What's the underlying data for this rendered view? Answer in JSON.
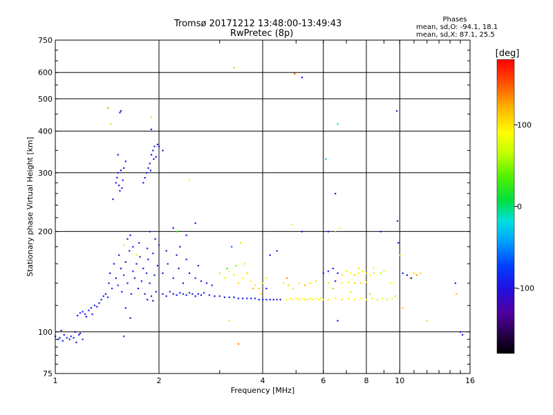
{
  "header": {
    "title": "Tromsø 20171212 13:48:00-13:49:43",
    "subtitle": "RwPretec (8p)",
    "stats_title": "Phases",
    "stats_o": "mean, sd,O: -94.1, 18.1",
    "stats_x": "mean, sd,X:  87.1, 25.5"
  },
  "colorbar": {
    "unit": "[deg]",
    "ticks": [
      100,
      0,
      -100
    ],
    "range": [
      -180,
      180
    ]
  },
  "chart_data": {
    "type": "scatter",
    "title": "Tromsø 20171212 13:48:00-13:49:43",
    "subtitle": "RwPretec (8p)",
    "xlabel": "Frequency [MHz]",
    "ylabel": "Stationary phase Virtual Height [km]",
    "x_scale": "log",
    "y_scale": "log",
    "xlim": [
      1,
      16
    ],
    "ylim": [
      75,
      750
    ],
    "x_ticks": [
      1,
      2,
      4,
      6,
      8,
      10,
      16
    ],
    "x_grid": [
      2,
      4,
      6,
      8,
      10
    ],
    "y_ticks": [
      75,
      100,
      200,
      300,
      400,
      500,
      600,
      750
    ],
    "grid": true,
    "color_variable": "phase [deg]",
    "color_range": [
      -180,
      180
    ],
    "points": [
      [
        1.0,
        97,
        -95
      ],
      [
        1.02,
        95,
        -100
      ],
      [
        1.03,
        96,
        -98
      ],
      [
        1.05,
        94,
        -92
      ],
      [
        1.06,
        98,
        -105
      ],
      [
        1.08,
        96,
        -90
      ],
      [
        1.1,
        95,
        -100
      ],
      [
        1.11,
        97,
        -85
      ],
      [
        1.13,
        96,
        -95
      ],
      [
        1.14,
        100,
        -110
      ],
      [
        1.15,
        93,
        -100
      ],
      [
        1.17,
        98,
        -90
      ],
      [
        1.18,
        99,
        -100
      ],
      [
        1.2,
        95,
        -80
      ],
      [
        1.04,
        101,
        -102
      ],
      [
        1.16,
        112,
        -100
      ],
      [
        1.18,
        114,
        -95
      ],
      [
        1.2,
        115,
        -90
      ],
      [
        1.22,
        113,
        -100
      ],
      [
        1.25,
        116,
        -95
      ],
      [
        1.27,
        118,
        -100
      ],
      [
        1.3,
        120,
        -92
      ],
      [
        1.32,
        119,
        -98
      ],
      [
        1.23,
        111,
        -100
      ],
      [
        1.28,
        113,
        -108
      ],
      [
        1.34,
        122,
        -100
      ],
      [
        1.36,
        125,
        -90
      ],
      [
        1.38,
        128,
        -95
      ],
      [
        1.4,
        130,
        -100
      ],
      [
        1.42,
        127,
        -88
      ],
      [
        1.43,
        140,
        -95
      ],
      [
        1.44,
        150,
        -100
      ],
      [
        1.46,
        135,
        -85
      ],
      [
        1.48,
        160,
        -95
      ],
      [
        1.5,
        145,
        -100
      ],
      [
        1.52,
        138,
        -90
      ],
      [
        1.53,
        170,
        -95
      ],
      [
        1.55,
        155,
        -100
      ],
      [
        1.56,
        132,
        -92
      ],
      [
        1.58,
        148,
        -80
      ],
      [
        1.6,
        162,
        -100
      ],
      [
        1.62,
        140,
        -95
      ],
      [
        1.64,
        175,
        -90
      ],
      [
        1.66,
        130,
        -100
      ],
      [
        1.68,
        152,
        -85
      ],
      [
        1.7,
        145,
        -95
      ],
      [
        1.72,
        160,
        -110
      ],
      [
        1.74,
        135,
        -100
      ],
      [
        1.76,
        168,
        -95
      ],
      [
        1.78,
        142,
        -90
      ],
      [
        1.8,
        155,
        -100
      ],
      [
        1.82,
        130,
        -95
      ],
      [
        1.84,
        150,
        -88
      ],
      [
        1.86,
        165,
        -100
      ],
      [
        1.88,
        140,
        -95
      ],
      [
        1.9,
        128,
        -92
      ],
      [
        1.92,
        172,
        -100
      ],
      [
        1.94,
        148,
        -95
      ],
      [
        1.96,
        132,
        -90
      ],
      [
        1.98,
        158,
        -100
      ],
      [
        1.62,
        190,
        -100
      ],
      [
        1.65,
        195,
        -95
      ],
      [
        1.68,
        180,
        -110
      ],
      [
        1.75,
        185,
        -100
      ],
      [
        1.85,
        178,
        -95
      ],
      [
        1.88,
        200,
        -90
      ],
      [
        1.95,
        190,
        -100
      ],
      [
        2.0,
        182,
        -95
      ],
      [
        1.58,
        182,
        60
      ],
      [
        1.72,
        170,
        70
      ],
      [
        1.47,
        250,
        -100
      ],
      [
        1.5,
        280,
        -95
      ],
      [
        1.51,
        290,
        -100
      ],
      [
        1.52,
        300,
        -90
      ],
      [
        1.53,
        275,
        -100
      ],
      [
        1.54,
        265,
        -95
      ],
      [
        1.55,
        305,
        -100
      ],
      [
        1.57,
        285,
        -90
      ],
      [
        1.58,
        310,
        -100
      ],
      [
        1.56,
        270,
        -95
      ],
      [
        1.52,
        340,
        -100
      ],
      [
        1.54,
        455,
        -95
      ],
      [
        1.55,
        460,
        -100
      ],
      [
        1.6,
        325,
        -90
      ],
      [
        1.8,
        280,
        -100
      ],
      [
        1.82,
        290,
        -95
      ],
      [
        1.84,
        300,
        -90
      ],
      [
        1.86,
        310,
        -100
      ],
      [
        1.88,
        320,
        -95
      ],
      [
        1.9,
        340,
        -100
      ],
      [
        1.92,
        350,
        -95
      ],
      [
        1.94,
        360,
        -90
      ],
      [
        1.96,
        335,
        -100
      ],
      [
        1.98,
        365,
        -95
      ],
      [
        2.0,
        360,
        -100
      ],
      [
        1.89,
        305,
        -92
      ],
      [
        1.93,
        330,
        -100
      ],
      [
        1.9,
        405,
        -95
      ],
      [
        2.05,
        350,
        -100
      ],
      [
        1.42,
        470,
        40
      ],
      [
        1.45,
        420,
        60
      ],
      [
        1.9,
        440,
        70
      ],
      [
        1.65,
        110,
        -100
      ],
      [
        1.6,
        118,
        -95
      ],
      [
        1.58,
        97,
        -80
      ],
      [
        1.85,
        125,
        -100
      ],
      [
        1.92,
        124,
        -95
      ],
      [
        2.05,
        130,
        -100
      ],
      [
        2.1,
        128,
        -95
      ],
      [
        2.15,
        132,
        -90
      ],
      [
        2.2,
        130,
        -100
      ],
      [
        2.25,
        129,
        -95
      ],
      [
        2.3,
        131,
        -100
      ],
      [
        2.35,
        130,
        -92
      ],
      [
        2.4,
        129,
        -100
      ],
      [
        2.45,
        131,
        -95
      ],
      [
        2.5,
        130,
        -100
      ],
      [
        2.55,
        128,
        -90
      ],
      [
        2.6,
        130,
        -100
      ],
      [
        2.65,
        129,
        -95
      ],
      [
        2.7,
        131,
        -100
      ],
      [
        2.8,
        129,
        -95
      ],
      [
        2.9,
        128,
        -100
      ],
      [
        3.0,
        128,
        -92
      ],
      [
        3.1,
        127,
        -100
      ],
      [
        3.2,
        127,
        -95
      ],
      [
        3.3,
        127,
        -100
      ],
      [
        3.4,
        126,
        -95
      ],
      [
        3.5,
        126,
        -100
      ],
      [
        3.6,
        126,
        -90
      ],
      [
        3.7,
        126,
        -100
      ],
      [
        3.8,
        126,
        -95
      ],
      [
        3.9,
        125,
        -100
      ],
      [
        4.0,
        125,
        -95
      ],
      [
        4.1,
        125,
        -100
      ],
      [
        4.2,
        125,
        -92
      ],
      [
        4.3,
        125,
        -100
      ],
      [
        4.4,
        125,
        -95
      ],
      [
        4.5,
        125,
        -100
      ],
      [
        2.05,
        150,
        -100
      ],
      [
        2.12,
        160,
        -95
      ],
      [
        2.2,
        145,
        -90
      ],
      [
        2.28,
        155,
        -100
      ],
      [
        2.35,
        140,
        -95
      ],
      [
        2.45,
        150,
        -100
      ],
      [
        2.55,
        145,
        -85
      ],
      [
        2.65,
        142,
        -95
      ],
      [
        2.75,
        140,
        -100
      ],
      [
        2.85,
        138,
        -95
      ],
      [
        2.1,
        175,
        -100
      ],
      [
        2.25,
        170,
        -95
      ],
      [
        2.4,
        165,
        -100
      ],
      [
        2.6,
        158,
        -90
      ],
      [
        2.3,
        180,
        -95
      ],
      [
        2.2,
        205,
        -100
      ],
      [
        2.4,
        195,
        -95
      ],
      [
        2.55,
        212,
        -100
      ],
      [
        2.45,
        285,
        90
      ],
      [
        2.25,
        200,
        20
      ],
      [
        3.0,
        150,
        60
      ],
      [
        3.1,
        145,
        80
      ],
      [
        3.2,
        152,
        90
      ],
      [
        3.3,
        148,
        100
      ],
      [
        3.4,
        140,
        110
      ],
      [
        3.5,
        145,
        95
      ],
      [
        3.6,
        150,
        105
      ],
      [
        3.7,
        142,
        90
      ],
      [
        3.8,
        138,
        100
      ],
      [
        3.9,
        135,
        110
      ],
      [
        4.0,
        140,
        95
      ],
      [
        4.1,
        145,
        100
      ],
      [
        3.15,
        155,
        30
      ],
      [
        3.35,
        158,
        50
      ],
      [
        3.55,
        160,
        70
      ],
      [
        3.75,
        135,
        120
      ],
      [
        3.95,
        130,
        100
      ],
      [
        3.25,
        180,
        -60
      ],
      [
        3.45,
        185,
        60
      ],
      [
        3.3,
        620,
        120
      ],
      [
        3.2,
        108,
        100
      ],
      [
        3.4,
        92,
        140
      ],
      [
        4.1,
        135,
        -100
      ],
      [
        4.2,
        170,
        -100
      ],
      [
        4.4,
        175,
        -90
      ],
      [
        4.7,
        125,
        90
      ],
      [
        4.8,
        126,
        100
      ],
      [
        4.9,
        125,
        85
      ],
      [
        5.0,
        126,
        95
      ],
      [
        5.1,
        125,
        100
      ],
      [
        5.2,
        126,
        90
      ],
      [
        5.3,
        125,
        80
      ],
      [
        5.4,
        125,
        100
      ],
      [
        5.5,
        126,
        95
      ],
      [
        5.6,
        125,
        90
      ],
      [
        5.7,
        126,
        85
      ],
      [
        5.8,
        125,
        100
      ],
      [
        5.9,
        126,
        95
      ],
      [
        6.0,
        125,
        90
      ],
      [
        4.6,
        140,
        100
      ],
      [
        4.75,
        138,
        110
      ],
      [
        4.9,
        135,
        95
      ],
      [
        5.1,
        140,
        100
      ],
      [
        5.3,
        138,
        120
      ],
      [
        5.5,
        140,
        100
      ],
      [
        5.7,
        142,
        110
      ],
      [
        4.7,
        145,
        130
      ],
      [
        4.85,
        210,
        100
      ],
      [
        5.2,
        200,
        -100
      ],
      [
        4.95,
        595,
        150
      ],
      [
        5.2,
        580,
        -100
      ],
      [
        6.0,
        150,
        -100
      ],
      [
        6.2,
        152,
        -95
      ],
      [
        6.4,
        155,
        -90
      ],
      [
        6.6,
        150,
        -100
      ],
      [
        6.8,
        148,
        100
      ],
      [
        7.0,
        152,
        100
      ],
      [
        7.2,
        150,
        95
      ],
      [
        7.4,
        148,
        110
      ],
      [
        7.6,
        150,
        100
      ],
      [
        7.8,
        152,
        95
      ],
      [
        8.0,
        150,
        100
      ],
      [
        8.2,
        148,
        90
      ],
      [
        8.4,
        150,
        100
      ],
      [
        6.2,
        140,
        100
      ],
      [
        6.5,
        142,
        -100
      ],
      [
        6.8,
        140,
        95
      ],
      [
        7.1,
        141,
        100
      ],
      [
        7.4,
        140,
        110
      ],
      [
        7.7,
        140,
        100
      ],
      [
        8.0,
        141,
        95
      ],
      [
        6.2,
        125,
        100
      ],
      [
        6.5,
        126,
        90
      ],
      [
        6.8,
        125,
        100
      ],
      [
        7.1,
        126,
        95
      ],
      [
        7.4,
        125,
        90
      ],
      [
        7.7,
        126,
        85
      ],
      [
        8.0,
        125,
        80
      ],
      [
        8.3,
        126,
        75
      ],
      [
        8.6,
        125,
        70
      ],
      [
        8.9,
        126,
        75
      ],
      [
        9.2,
        125,
        70
      ],
      [
        9.5,
        126,
        80
      ],
      [
        6.1,
        330,
        -30
      ],
      [
        6.5,
        260,
        -100
      ],
      [
        6.6,
        420,
        -20
      ],
      [
        6.2,
        200,
        -100
      ],
      [
        6.5,
        200,
        120
      ],
      [
        6.7,
        205,
        90
      ],
      [
        6.6,
        108,
        -100
      ],
      [
        8.8,
        200,
        -100
      ],
      [
        8.8,
        150,
        60
      ],
      [
        9.0,
        152,
        80
      ],
      [
        9.4,
        140,
        90
      ],
      [
        9.7,
        128,
        60
      ],
      [
        9.8,
        460,
        -100
      ],
      [
        9.85,
        215,
        -100
      ],
      [
        9.9,
        185,
        -95
      ],
      [
        10.0,
        170,
        110
      ],
      [
        10.2,
        150,
        -100
      ],
      [
        10.5,
        148,
        -95
      ],
      [
        10.7,
        145,
        100
      ],
      [
        11.0,
        150,
        110
      ],
      [
        11.5,
        150,
        105
      ],
      [
        10.2,
        118,
        120
      ],
      [
        12.0,
        108,
        60
      ],
      [
        14.5,
        140,
        -100
      ],
      [
        15.0,
        100,
        -100
      ],
      [
        15.2,
        98,
        -100
      ],
      [
        14.6,
        130,
        120
      ],
      [
        10.8,
        145,
        -100
      ],
      [
        11.2,
        148,
        130
      ],
      [
        6.4,
        135,
        120
      ],
      [
        7.2,
        132,
        100
      ],
      [
        8.2,
        130,
        110
      ],
      [
        7.6,
        155,
        100
      ],
      [
        8.4,
        155,
        95
      ]
    ]
  }
}
